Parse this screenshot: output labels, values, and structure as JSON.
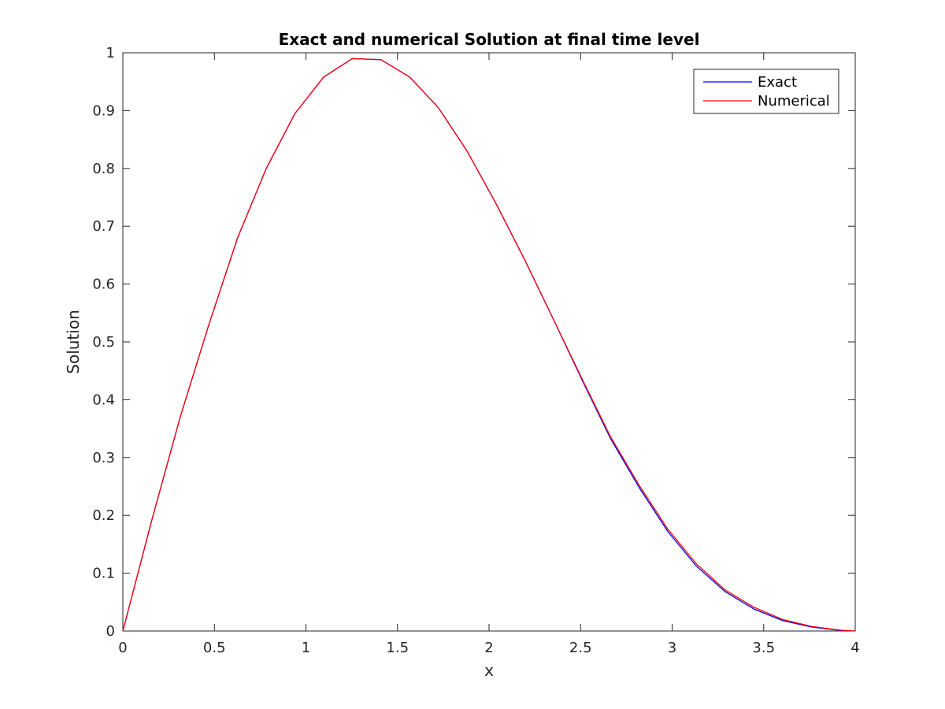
{
  "chart_data": {
    "type": "line",
    "title": "Exact and numerical Solution at final time level",
    "xlabel": "x",
    "ylabel": "Solution",
    "xlim": [
      0,
      4
    ],
    "ylim": [
      0,
      1
    ],
    "xticks": [
      0,
      0.5,
      1,
      1.5,
      2,
      2.5,
      3,
      3.5,
      4
    ],
    "xtick_labels": [
      "0",
      "0.5",
      "1",
      "1.5",
      "2",
      "2.5",
      "3",
      "3.5",
      "4"
    ],
    "yticks": [
      0,
      0.1,
      0.2,
      0.3,
      0.4,
      0.5,
      0.6,
      0.7,
      0.8,
      0.9,
      1
    ],
    "ytick_labels": [
      "0",
      "0.1",
      "0.2",
      "0.3",
      "0.4",
      "0.5",
      "0.6",
      "0.7",
      "0.8",
      "0.9",
      "1"
    ],
    "grid": false,
    "legend_position": "top-right",
    "x": [
      0,
      0.1567,
      0.3133,
      0.47,
      0.6267,
      0.7833,
      0.94,
      1.0967,
      1.2533,
      1.41,
      1.5667,
      1.7233,
      1.88,
      2.0367,
      2.1933,
      2.35,
      2.5067,
      2.6633,
      2.82,
      2.9767,
      3.1333,
      3.29,
      3.4467,
      3.6033,
      3.76,
      3.9167,
      4
    ],
    "series": [
      {
        "name": "Exact",
        "color": "#0000ff",
        "values": [
          0,
          0.19,
          0.37,
          0.53,
          0.68,
          0.8,
          0.895,
          0.958,
          0.99,
          0.988,
          0.958,
          0.905,
          0.83,
          0.74,
          0.643,
          0.54,
          0.435,
          0.333,
          0.248,
          0.172,
          0.112,
          0.068,
          0.038,
          0.018,
          0.007,
          0.001,
          0
        ]
      },
      {
        "name": "Numerical",
        "color": "#ff0000",
        "values": [
          0,
          0.19,
          0.37,
          0.53,
          0.68,
          0.8,
          0.895,
          0.958,
          0.99,
          0.988,
          0.958,
          0.905,
          0.83,
          0.74,
          0.643,
          0.54,
          0.437,
          0.336,
          0.252,
          0.176,
          0.116,
          0.071,
          0.041,
          0.02,
          0.008,
          0.0015,
          0
        ]
      }
    ]
  }
}
